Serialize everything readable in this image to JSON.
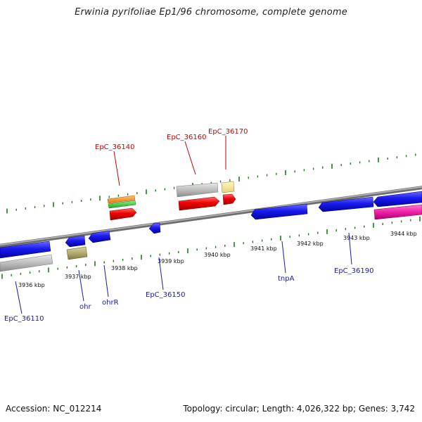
{
  "title": "Erwinia pyrifoliae Ep1/96 chromosome, complete genome",
  "footer": {
    "accession": "Accession: NC_012214",
    "summary": "Topology: circular; Length: 4,026,322 bp; Genes: 3,742"
  },
  "colors": {
    "backbone": "#8a8a8a",
    "tick": "#1f7a1f",
    "label_top": "#cc0000",
    "label_bottom": "#1a1aa8"
  },
  "scale": {
    "unit": "kbp",
    "labels": [
      "3936 kbp",
      "3937 kbp",
      "3938 kbp",
      "3939 kbp",
      "3940 kbp",
      "3941 kbp",
      "3942 kbp",
      "3943 kbp",
      "3944 kbp"
    ]
  },
  "gene_labels": {
    "top": [
      "EpC_36140",
      "EpC_36160",
      "EpC_36170"
    ],
    "bottom": [
      "EpC_36110",
      "ohr",
      "ohrR",
      "EpC_36150",
      "tnpA",
      "EpC_36190"
    ]
  }
}
